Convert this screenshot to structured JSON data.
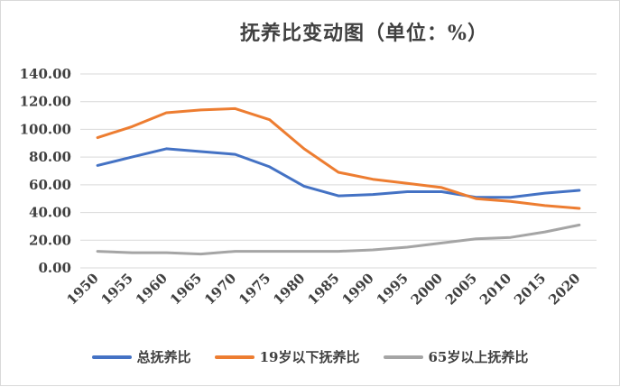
{
  "chart_data": {
    "type": "line",
    "title": "抚养比变动图（单位：%）",
    "categories": [
      "1950",
      "1955",
      "1960",
      "1965",
      "1970",
      "1975",
      "1980",
      "1985",
      "1990",
      "1995",
      "2000",
      "2005",
      "2010",
      "2015",
      "2020"
    ],
    "ylim": [
      0,
      140
    ],
    "yticks": [
      "0.00",
      "20.00",
      "40.00",
      "60.00",
      "80.00",
      "100.00",
      "120.00",
      "140.00"
    ],
    "grid": true,
    "legend_position": "bottom",
    "series": [
      {
        "name": "总抚养比",
        "color": "#4472c4",
        "values": [
          74,
          80,
          86,
          84,
          82,
          73,
          59,
          52,
          53,
          55,
          55,
          51,
          51,
          54,
          56
        ]
      },
      {
        "name": "19岁以下抚养比",
        "color": "#ed7d31",
        "values": [
          94,
          102,
          112,
          114,
          115,
          107,
          86,
          69,
          64,
          61,
          58,
          50,
          48,
          45,
          43
        ]
      },
      {
        "name": "65岁以上抚养比",
        "color": "#a5a5a5",
        "values": [
          12,
          11,
          11,
          10,
          12,
          12,
          12,
          12,
          13,
          15,
          18,
          21,
          22,
          26,
          31
        ]
      }
    ]
  }
}
